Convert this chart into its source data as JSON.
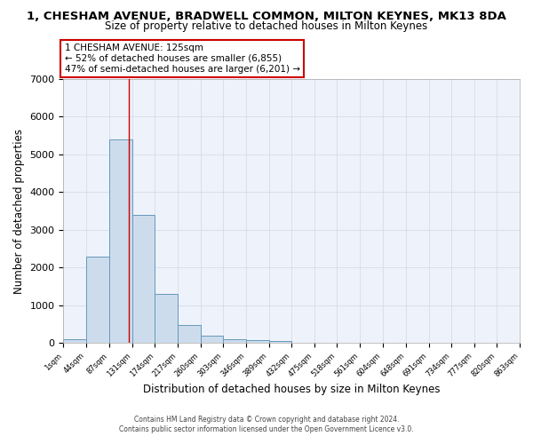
{
  "title": "1, CHESHAM AVENUE, BRADWELL COMMON, MILTON KEYNES, MK13 8DA",
  "subtitle": "Size of property relative to detached houses in Milton Keynes",
  "xlabel": "Distribution of detached houses by size in Milton Keynes",
  "ylabel": "Number of detached properties",
  "bar_edges": [
    1,
    44,
    87,
    131,
    174,
    217,
    260,
    303,
    346,
    389,
    432,
    475,
    518,
    561,
    604,
    648,
    691,
    734,
    777,
    820,
    863
  ],
  "bar_heights": [
    100,
    2300,
    5400,
    3400,
    1300,
    480,
    190,
    100,
    80,
    50,
    0,
    0,
    0,
    0,
    0,
    0,
    0,
    0,
    0,
    0
  ],
  "bar_color": "#cddcec",
  "bar_edge_color": "#6699bb",
  "grid_color": "#d0d8e8",
  "bg_color": "#eef2fa",
  "vline_x": 125,
  "vline_color": "#cc0000",
  "annotation_line1": "1 CHESHAM AVENUE: 125sqm",
  "annotation_line2": "← 52% of detached houses are smaller (6,855)",
  "annotation_line3": "47% of semi-detached houses are larger (6,201) →",
  "annotation_box_color": "#ffffff",
  "annotation_box_edge": "#cc0000",
  "ylim": [
    0,
    7000
  ],
  "yticks": [
    0,
    1000,
    2000,
    3000,
    4000,
    5000,
    6000,
    7000
  ],
  "footer_line1": "Contains HM Land Registry data © Crown copyright and database right 2024.",
  "footer_line2": "Contains public sector information licensed under the Open Government Licence v3.0.",
  "tick_labels": [
    "1sqm",
    "44sqm",
    "87sqm",
    "131sqm",
    "174sqm",
    "217sqm",
    "260sqm",
    "303sqm",
    "346sqm",
    "389sqm",
    "432sqm",
    "475sqm",
    "518sqm",
    "561sqm",
    "604sqm",
    "648sqm",
    "691sqm",
    "734sqm",
    "777sqm",
    "820sqm",
    "863sqm"
  ]
}
